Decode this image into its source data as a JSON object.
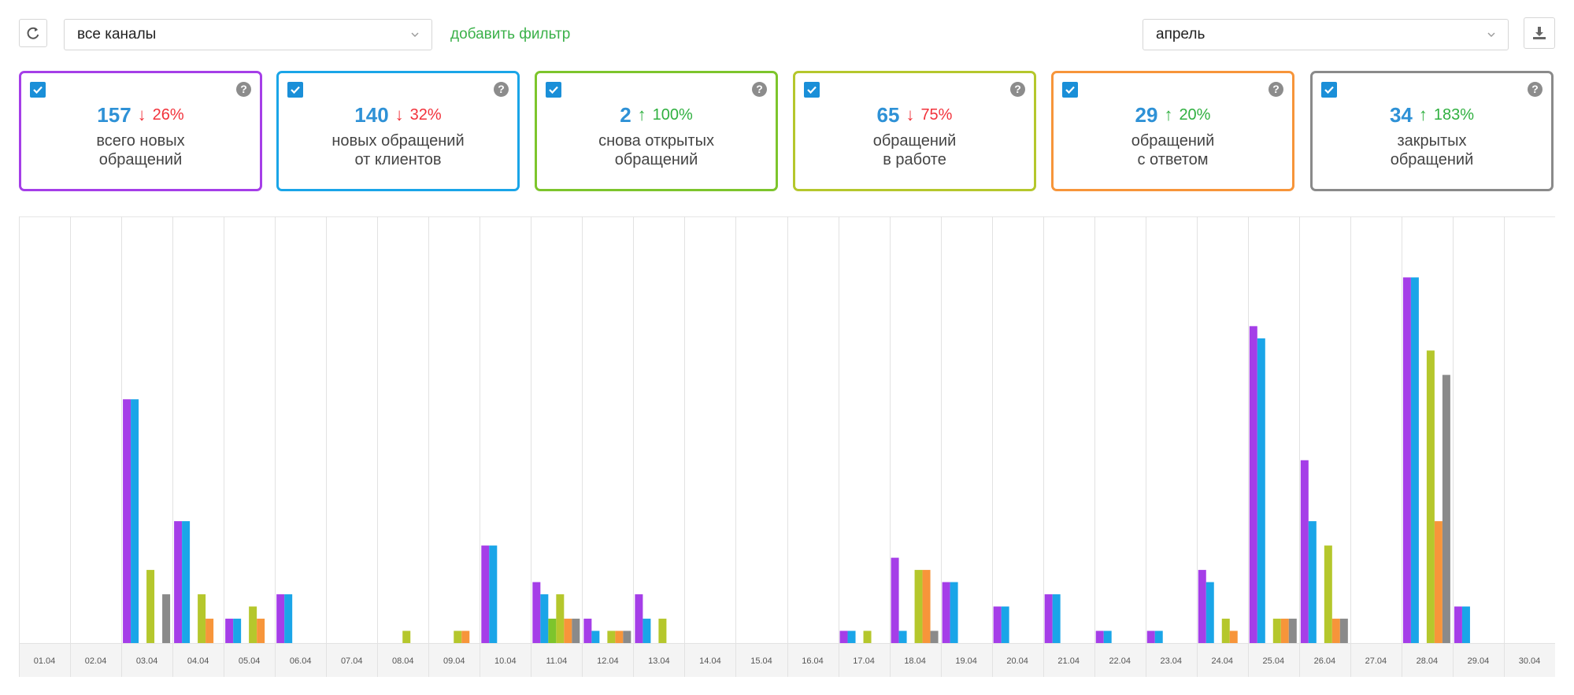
{
  "toolbar": {
    "channel_select_value": "все каналы",
    "add_filter_label": "добавить фильтр",
    "month_select_value": "апрель",
    "refresh_icon": "refresh-icon",
    "download_icon": "download-icon"
  },
  "cards": [
    {
      "value": "157",
      "trend": "down",
      "arrow": "↓",
      "percent": "26%",
      "label_line1": "всего новых",
      "label_line2": "обращений",
      "color": "#a53ee8",
      "checked": true
    },
    {
      "value": "140",
      "trend": "down",
      "arrow": "↓",
      "percent": "32%",
      "label_line1": "новых обращений",
      "label_line2": "от клиентов",
      "color": "#1aa5e8",
      "checked": true
    },
    {
      "value": "2",
      "trend": "up",
      "arrow": "↑",
      "percent": "100%",
      "label_line1": "снова открытых",
      "label_line2": "обращений",
      "color": "#7dc52c",
      "checked": true
    },
    {
      "value": "65",
      "trend": "down",
      "arrow": "↓",
      "percent": "75%",
      "label_line1": "обращений",
      "label_line2": "в работе",
      "color": "#b5c72c",
      "checked": true
    },
    {
      "value": "29",
      "trend": "up",
      "arrow": "↑",
      "percent": "20%",
      "label_line1": "обращений",
      "label_line2": "с ответом",
      "color": "#f7953a",
      "checked": true
    },
    {
      "value": "34",
      "trend": "up",
      "arrow": "↑",
      "percent": "183%",
      "label_line1": "закрытых",
      "label_line2": "обращений",
      "color": "#8a8a8a",
      "checked": true
    }
  ],
  "chart_data": {
    "type": "bar",
    "categories": [
      "01.04",
      "02.04",
      "03.04",
      "04.04",
      "05.04",
      "06.04",
      "07.04",
      "08.04",
      "09.04",
      "10.04",
      "11.04",
      "12.04",
      "13.04",
      "14.04",
      "15.04",
      "16.04",
      "17.04",
      "18.04",
      "19.04",
      "20.04",
      "21.04",
      "22.04",
      "23.04",
      "24.04",
      "25.04",
      "26.04",
      "27.04",
      "28.04",
      "29.04",
      "30.04"
    ],
    "series": [
      {
        "color": "#a53ee8",
        "values": [
          0,
          0,
          20,
          10,
          2,
          4,
          0,
          0,
          0,
          8,
          5,
          2,
          4,
          0,
          0,
          0,
          1,
          7,
          5,
          3,
          4,
          1,
          1,
          6,
          26,
          15,
          0,
          30,
          3,
          0
        ]
      },
      {
        "color": "#1aa5e8",
        "values": [
          0,
          0,
          20,
          10,
          2,
          4,
          0,
          0,
          0,
          8,
          4,
          1,
          2,
          0,
          0,
          0,
          1,
          1,
          5,
          3,
          4,
          1,
          1,
          5,
          25,
          10,
          0,
          30,
          3,
          0
        ]
      },
      {
        "color": "#7dc52c",
        "values": [
          0,
          0,
          0,
          0,
          0,
          0,
          0,
          0,
          0,
          0,
          2,
          0,
          0,
          0,
          0,
          0,
          0,
          0,
          0,
          0,
          0,
          0,
          0,
          0,
          0,
          0,
          0,
          0,
          0,
          0
        ]
      },
      {
        "color": "#b5c72c",
        "values": [
          0,
          0,
          6,
          4,
          3,
          0,
          0,
          1,
          1,
          0,
          4,
          1,
          2,
          0,
          0,
          0,
          1,
          6,
          0,
          0,
          0,
          0,
          0,
          2,
          2,
          8,
          0,
          24,
          0,
          0
        ]
      },
      {
        "color": "#f7953a",
        "values": [
          0,
          0,
          0,
          2,
          2,
          0,
          0,
          0,
          1,
          0,
          2,
          1,
          0,
          0,
          0,
          0,
          0,
          6,
          0,
          0,
          0,
          0,
          0,
          1,
          2,
          2,
          0,
          10,
          0,
          0
        ]
      },
      {
        "color": "#8a8a8a",
        "values": [
          0,
          0,
          4,
          0,
          0,
          0,
          0,
          0,
          0,
          0,
          2,
          1,
          0,
          0,
          0,
          0,
          0,
          1,
          0,
          0,
          0,
          0,
          0,
          0,
          2,
          2,
          0,
          22,
          0,
          0
        ]
      }
    ],
    "ylim": [
      0,
      35
    ],
    "grid": "vertical"
  }
}
